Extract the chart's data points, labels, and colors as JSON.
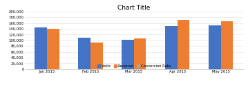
{
  "title": "Chart Title",
  "categories": [
    "Jan 2015",
    "Feb 2015",
    "Mar 2015",
    "Apr 2015",
    "May 2015"
  ],
  "series": [
    {
      "label": "Visits",
      "color": "#4472C4",
      "values": [
        145000,
        110000,
        103000,
        150000,
        152000
      ]
    },
    {
      "label": "Revenue",
      "color": "#ED7D31",
      "values": [
        140000,
        93000,
        107000,
        170000,
        167000
      ]
    },
    {
      "label": "Conversion Rate",
      "color": "#A5A5A5",
      "values": [
        0,
        0,
        0,
        0,
        0
      ]
    }
  ],
  "ylim": [
    0,
    200000
  ],
  "yticks": [
    0,
    20000,
    40000,
    60000,
    80000,
    100000,
    120000,
    140000,
    160000,
    180000,
    200000
  ],
  "background_color": "#ffffff",
  "title_fontsize": 6.5,
  "tick_fontsize": 3.8,
  "legend_fontsize": 3.8,
  "bar_width": 0.28,
  "grid_color": "#e0e0e0",
  "spine_color": "#c0c0c0"
}
